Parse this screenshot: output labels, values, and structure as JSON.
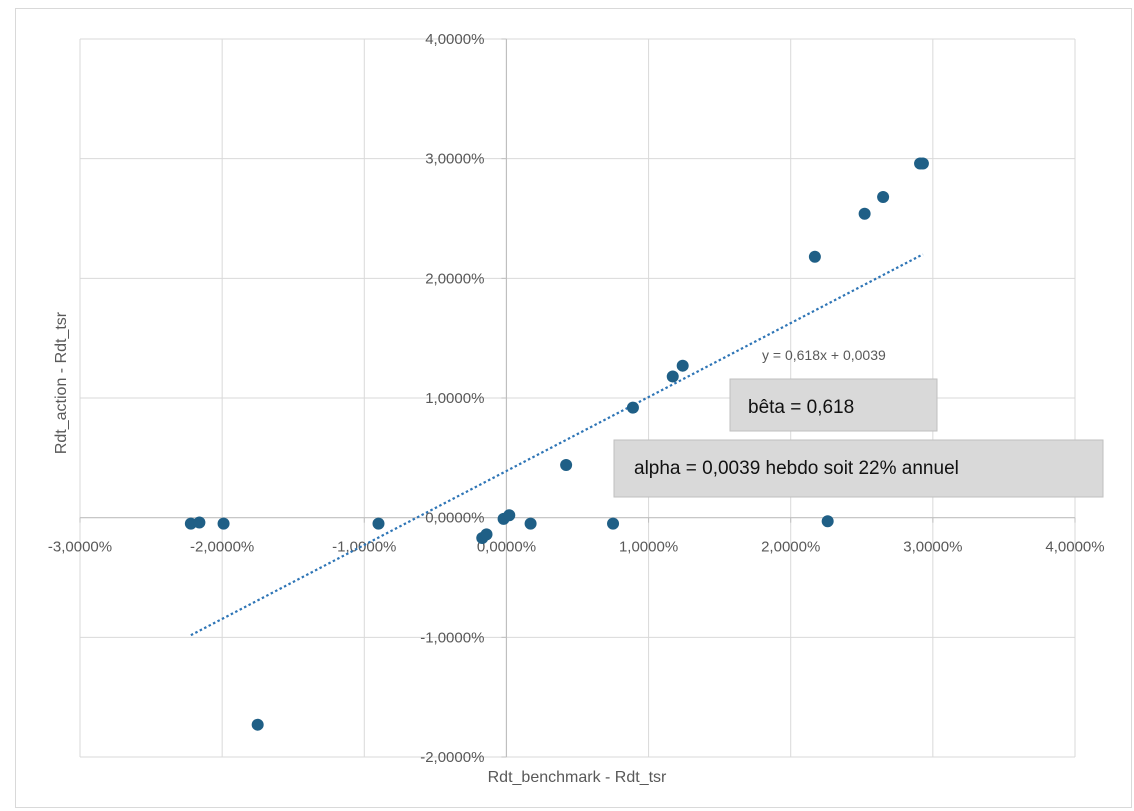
{
  "chart_data": {
    "type": "scatter",
    "xlabel": "Rdt_benchmark - Rdt_tsr",
    "ylabel": "Rdt_action - Rdt_tsr",
    "xlim": [
      -0.03,
      0.04
    ],
    "ylim": [
      -0.02,
      0.04
    ],
    "x_ticks": [
      -0.03,
      -0.02,
      -0.01,
      0.0,
      0.01,
      0.02,
      0.03,
      0.04
    ],
    "y_ticks": [
      -0.02,
      -0.01,
      0.0,
      0.01,
      0.02,
      0.03,
      0.04
    ],
    "x_tick_labels": [
      "-3,0000%",
      "-2,0000%",
      "-1,0000%",
      "0,0000%",
      "1,0000%",
      "2,0000%",
      "3,0000%",
      "4,0000%"
    ],
    "y_tick_labels": [
      "-2,0000%",
      "-1,0000%",
      "0,0000%",
      "1,0000%",
      "2,0000%",
      "3,0000%",
      "4,0000%"
    ],
    "grid": true,
    "marker_color": "#1f5f86",
    "trendline_color": "#2e75b6",
    "series": [
      {
        "points": [
          [
            -0.0222,
            -0.0005
          ],
          [
            -0.0216,
            -0.0004
          ],
          [
            -0.0199,
            -0.0005
          ],
          [
            -0.0175,
            -0.0173
          ],
          [
            -0.009,
            -0.0005
          ],
          [
            -0.0017,
            -0.0017
          ],
          [
            -0.0014,
            -0.0014
          ],
          [
            -0.0002,
            -0.0001
          ],
          [
            0.0002,
            0.0002
          ],
          [
            0.0017,
            -0.0005
          ],
          [
            0.0042,
            0.0044
          ],
          [
            0.0075,
            -0.0005
          ],
          [
            0.0089,
            0.0092
          ],
          [
            0.0117,
            0.0118
          ],
          [
            0.0124,
            0.0127
          ],
          [
            0.0217,
            0.0218
          ],
          [
            0.0226,
            -0.0003
          ],
          [
            0.0252,
            0.0254
          ],
          [
            0.0265,
            0.0268
          ],
          [
            0.0291,
            0.0296
          ],
          [
            0.0293,
            0.0296
          ]
        ]
      }
    ],
    "trendline": {
      "slope": 0.618,
      "intercept": 0.0039,
      "x_range": [
        -0.0222,
        0.0293
      ],
      "equation": "y = 0,618x + 0,0039"
    },
    "annotations": {
      "beta": "bêta = 0,618",
      "alpha": "alpha = 0,0039 hebdo soit 22% annuel"
    }
  }
}
